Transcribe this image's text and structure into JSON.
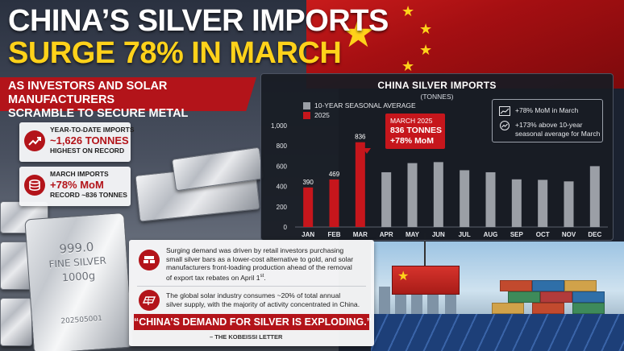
{
  "headline": {
    "line1": "CHINA’S SILVER IMPORTS",
    "line2": "SURGE 78% IN MARCH",
    "subtitle_line1": "AS INVESTORS AND SOLAR MANUFACTURERS",
    "subtitle_line2": "SCRAMBLE TO SECURE METAL"
  },
  "stats": [
    {
      "label": "YEAR-TO-DATE IMPORTS",
      "value": "~1,626 TONNES",
      "note": "HIGHEST ON RECORD",
      "icon": "trend-up-icon"
    },
    {
      "label": "MARCH IMPORTS",
      "value": "+78% MoM",
      "note": "RECORD ~836 TONNES",
      "icon": "coin-stack-icon"
    }
  ],
  "silver_bar": {
    "line1": "999.0",
    "line2": "FINE SILVER",
    "line3": "1000g",
    "serial": "202505001"
  },
  "chart_panel": {
    "title": "CHINA SILVER IMPORTS",
    "unit": "(TONNES)",
    "legend": [
      {
        "label": "10-YEAR SEASONAL AVERAGE",
        "color": "#9b9fa6"
      },
      {
        "label": "2025",
        "color": "#c6161c"
      }
    ],
    "info": [
      {
        "icon": "line-chart-icon",
        "text_line1": "+78% MoM in March",
        "text_line2": ""
      },
      {
        "icon": "trend-up-icon",
        "text_line1": "+173% above 10-year",
        "text_line2": "seasonal average for March"
      }
    ],
    "callout": {
      "line1": "MARCH 2025",
      "line2": "836 TONNES",
      "line3": "+78% MoM"
    }
  },
  "chart_data": {
    "type": "bar",
    "title": "CHINA SILVER IMPORTS",
    "ylabel": "(TONNES)",
    "xlabel": "",
    "categories": [
      "JAN",
      "FEB",
      "MAR",
      "APR",
      "MAY",
      "JUN",
      "JUL",
      "AUG",
      "SEP",
      "OCT",
      "NOV",
      "DEC"
    ],
    "series": [
      {
        "name": "2025",
        "color": "#c6161c",
        "values": [
          390,
          469,
          836,
          null,
          null,
          null,
          null,
          null,
          null,
          null,
          null,
          null
        ],
        "labels": [
          "390",
          "469",
          "836"
        ]
      },
      {
        "name": "10-YEAR SEASONAL AVERAGE",
        "color": "#9b9fa6",
        "values": [
          null,
          null,
          null,
          540,
          630,
          640,
          560,
          540,
          470,
          465,
          450,
          600
        ]
      }
    ],
    "yticks": [
      0,
      200,
      400,
      600,
      800,
      "1,000"
    ],
    "ylim": [
      0,
      1000
    ],
    "grid": false,
    "legend": "top-left"
  },
  "bottom_card": {
    "para1_line1": "Surging demand was driven by retail investors purchasing",
    "para1_line2": "small silver bars as a lower-cost alternative to gold, and solar",
    "para1_line3": "manufacturers front-loading production ahead of the removal",
    "para1_line4": "of export tax rebates on April 1",
    "para1_sup": "st",
    "para1_end": ".",
    "para2_line1": "The global solar industry consumes ~20% of total annual",
    "para2_line2": "silver supply, with the majority of activity concentrated in China.",
    "quote": "“CHINA’S DEMAND FOR SILVER IS EXPLODING.”",
    "source": "– THE KOBEISSI LETTER",
    "icon1": "silver-bars-icon",
    "icon2": "solar-panel-icon"
  }
}
